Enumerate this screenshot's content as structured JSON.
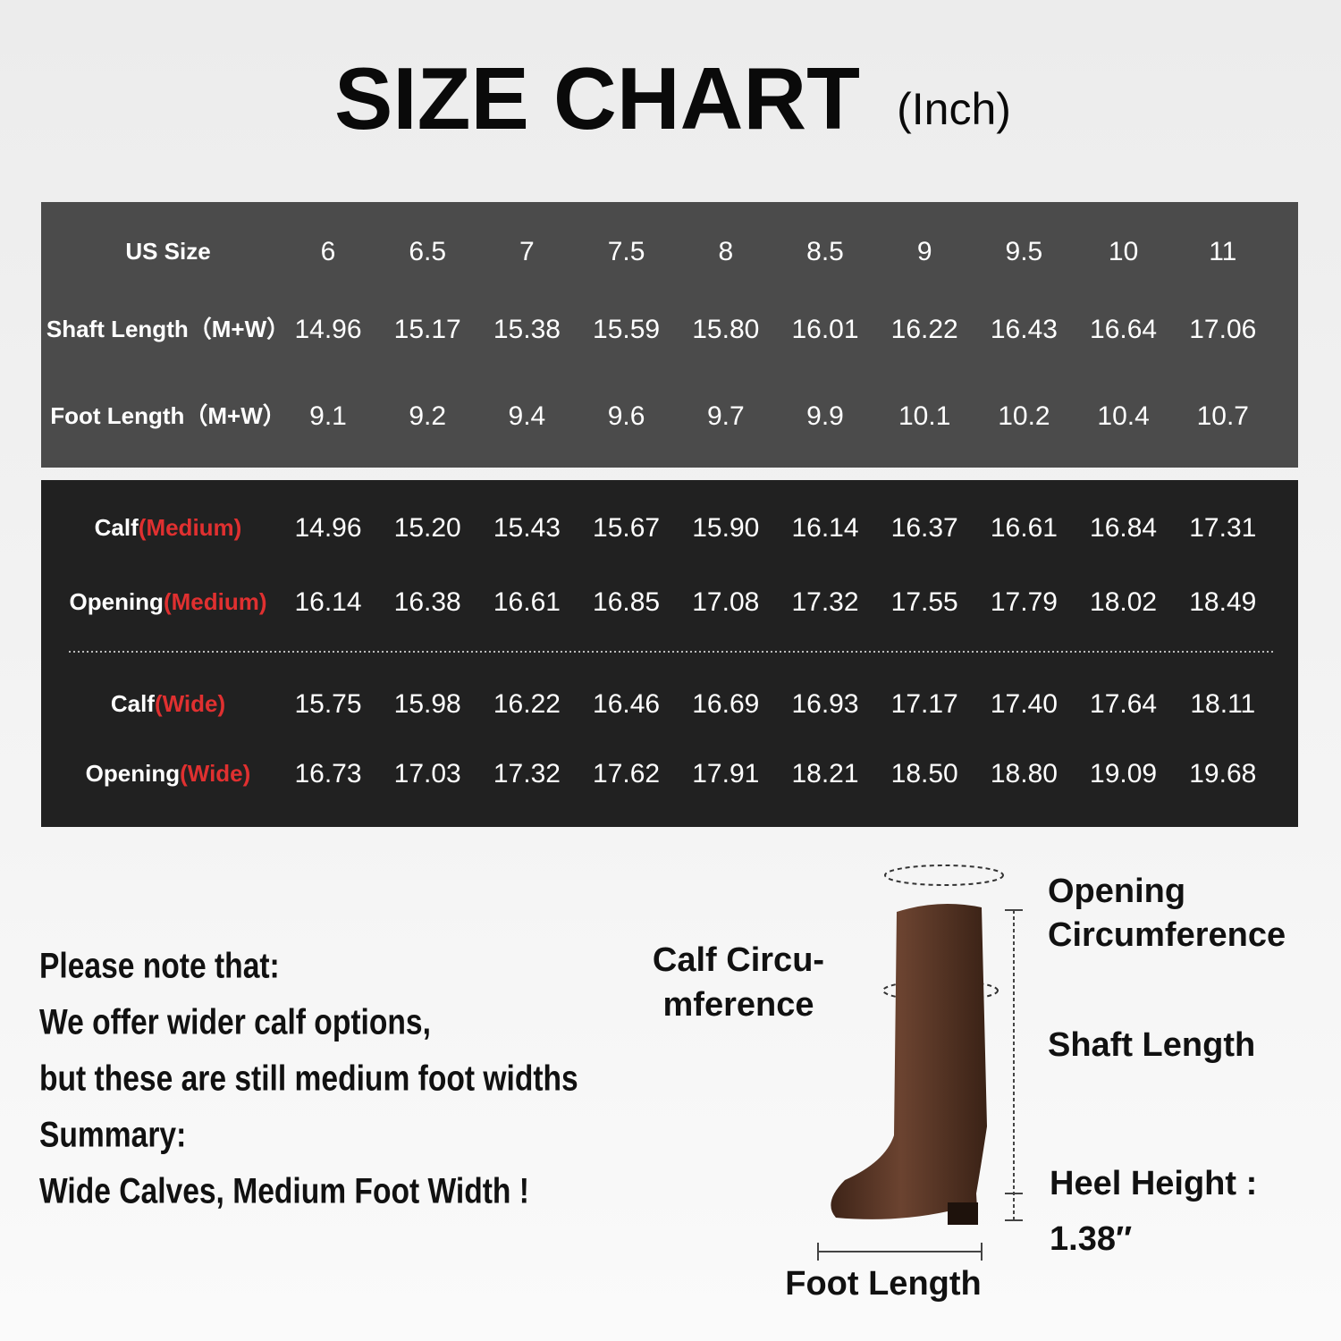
{
  "header": {
    "title": "SIZE CHART",
    "unit": "(Inch)"
  },
  "table_top": {
    "rows": [
      {
        "label": "US Size",
        "values": [
          "6",
          "6.5",
          "7",
          "7.5",
          "8",
          "8.5",
          "9",
          "9.5",
          "10",
          "11"
        ]
      },
      {
        "label": "Shaft Length（M+W）",
        "values": [
          "14.96",
          "15.17",
          "15.38",
          "15.59",
          "15.80",
          "16.01",
          "16.22",
          "16.43",
          "16.64",
          "17.06"
        ]
      },
      {
        "label": "Foot Length（M+W）",
        "values": [
          "9.1",
          "9.2",
          "9.4",
          "9.6",
          "9.7",
          "9.9",
          "10.1",
          "10.2",
          "10.4",
          "10.7"
        ]
      }
    ]
  },
  "table_bottom": {
    "rows": [
      {
        "label": "Calf",
        "qualifier": "(Medium)",
        "values": [
          "14.96",
          "15.20",
          "15.43",
          "15.67",
          "15.90",
          "16.14",
          "16.37",
          "16.61",
          "16.84",
          "17.31"
        ]
      },
      {
        "label": "Opening",
        "qualifier": "(Medium)",
        "values": [
          "16.14",
          "16.38",
          "16.61",
          "16.85",
          "17.08",
          "17.32",
          "17.55",
          "17.79",
          "18.02",
          "18.49"
        ]
      },
      {
        "label": "Calf",
        "qualifier": "(Wide)",
        "values": [
          "15.75",
          "15.98",
          "16.22",
          "16.46",
          "16.69",
          "16.93",
          "17.17",
          "17.40",
          "17.64",
          "18.11"
        ]
      },
      {
        "label": "Opening",
        "qualifier": "(Wide)",
        "values": [
          "16.73",
          "17.03",
          "17.32",
          "17.62",
          "17.91",
          "18.21",
          "18.50",
          "18.80",
          "19.09",
          "19.68"
        ]
      }
    ]
  },
  "notes": {
    "lines": [
      "Please note that:",
      "We offer wider calf options,",
      "but these are still medium foot widths",
      "Summary:"
    ],
    "highlight": "Wide Calves, Medium Foot Width !"
  },
  "diagram": {
    "opening": [
      "Opening",
      "Circumference"
    ],
    "calf": [
      "Calf Circu-",
      "mference"
    ],
    "shaft": "Shaft Length",
    "heel_label": "Heel Height :",
    "heel_value": "1.38″",
    "foot": "Foot Length"
  }
}
